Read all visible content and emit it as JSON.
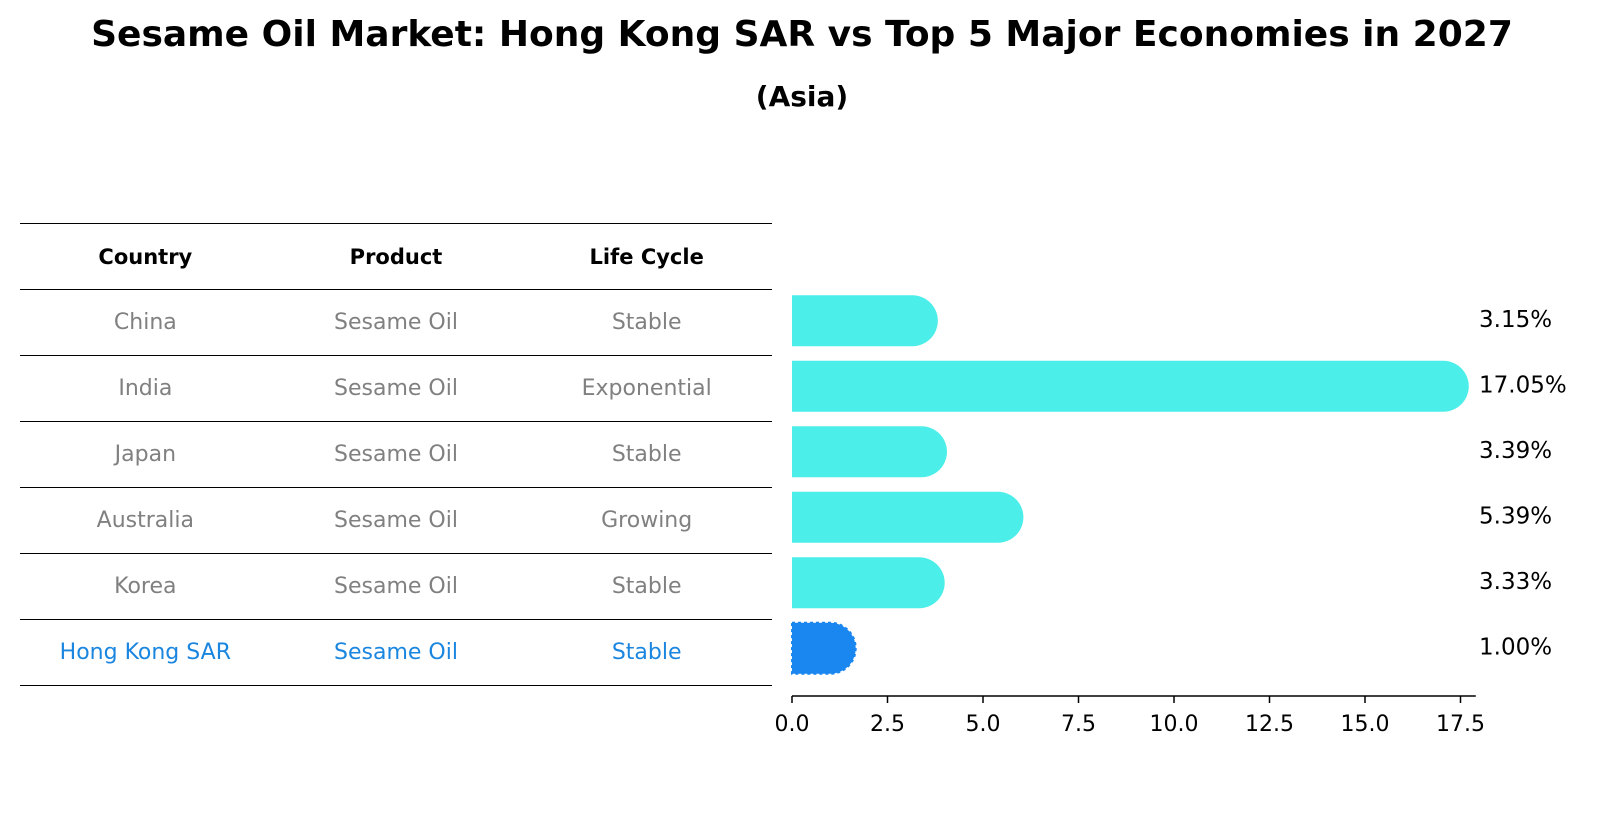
{
  "title": "Sesame Oil Market: Hong Kong SAR vs Top 5 Major Economies in 2027",
  "subtitle": "(Asia)",
  "table": {
    "headers": [
      "Country",
      "Product",
      "Life Cycle"
    ],
    "rows": [
      {
        "country": "China",
        "product": "Sesame Oil",
        "life_cycle": "Stable"
      },
      {
        "country": "India",
        "product": "Sesame Oil",
        "life_cycle": "Exponential"
      },
      {
        "country": "Japan",
        "product": "Sesame Oil",
        "life_cycle": "Stable"
      },
      {
        "country": "Australia",
        "product": "Sesame Oil",
        "life_cycle": "Growing"
      },
      {
        "country": "Korea",
        "product": "Sesame Oil",
        "life_cycle": "Stable"
      },
      {
        "country": "Hong Kong SAR",
        "product": "Sesame Oil",
        "life_cycle": "Stable"
      }
    ]
  },
  "colors": {
    "bar": "#4beee9",
    "highlight": "#1a86f0",
    "highlight_text": "#1a86e0",
    "muted_text": "#808080"
  },
  "chart_data": {
    "type": "bar",
    "orientation": "horizontal",
    "categories": [
      "China",
      "India",
      "Japan",
      "Australia",
      "Korea",
      "Hong Kong SAR"
    ],
    "values": [
      3.15,
      17.05,
      3.39,
      5.39,
      3.33,
      1.0
    ],
    "value_labels": [
      "3.15%",
      "17.05%",
      "3.39%",
      "5.39%",
      "3.33%",
      "1.00%"
    ],
    "highlight": "Hong Kong SAR",
    "xlim": [
      0,
      17.9
    ],
    "xticks": [
      0,
      2.5,
      5,
      7.5,
      10,
      12.5,
      15,
      17.5
    ],
    "xtick_labels": [
      "0.0",
      "2.5",
      "5.0",
      "7.5",
      "10.0",
      "12.5",
      "15.0",
      "17.5"
    ],
    "xlabel": "",
    "ylabel": "",
    "grid": false
  }
}
